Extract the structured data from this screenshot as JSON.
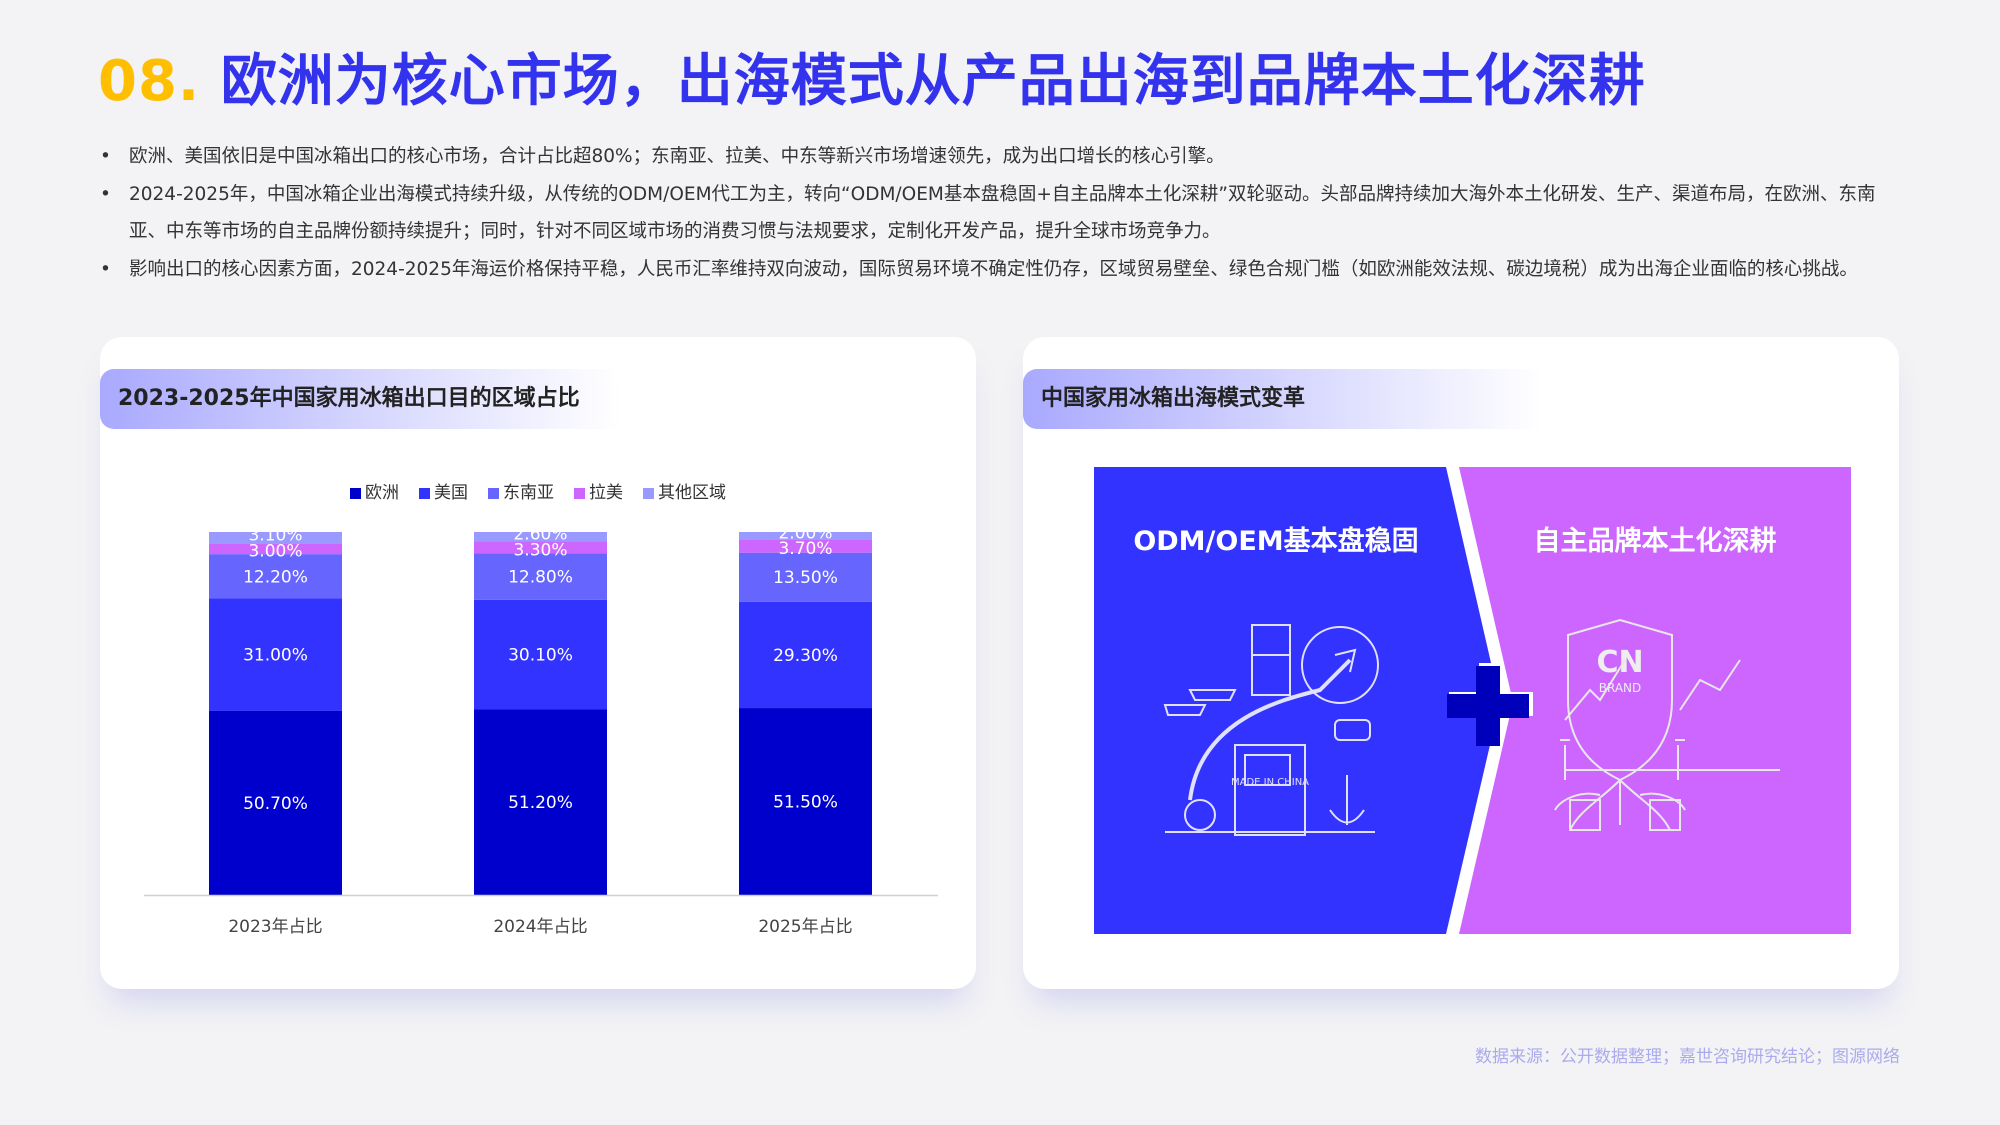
{
  "title": {
    "number": "08.",
    "text": "欧洲为核心市场，出海模式从产品出海到品牌本土化深耕"
  },
  "bullets": [
    "欧洲、美国依旧是中国冰箱出口的核心市场，合计占比超80%；东南亚、拉美、中东等新兴市场增速领先，成为出口增长的核心引擎。",
    "2024-2025年，中国冰箱企业出海模式持续升级，从传统的ODM/OEM代工为主，转向“ODM/OEM基本盘稳固+自主品牌本土化深耕”双轮驱动。头部品牌持续加大海外本土化研发、生产、渠道布局，在欧洲、东南亚、中东等市场的自主品牌份额持续提升；同时，针对不同区域市场的消费习惯与法规要求，定制化开发产品，提升全球市场竞争力。",
    "影响出口的核心因素方面，2024-2025年海运价格保持平稳，人民币汇率维持双向波动，国际贸易环境不确定性仍存，区域贸易壁垒、绿色合规门槛（如欧洲能效法规、碳边境税）成为出海企业面临的核心挑战。"
  ],
  "left_card": {
    "header": "2023-2025年中国家用冰箱出口目的区域占比"
  },
  "right_card": {
    "header": "中国家用冰箱出海模式变革",
    "left_panel_title": "ODM/OEM基本盘稳固",
    "right_panel_title": "自主品牌本土化深耕",
    "left_panel_color": "#3333ff",
    "right_panel_color": "#cc66ff",
    "plus_color": "#0000bb",
    "left_illustration": "made-in-china-export-illustration",
    "right_illustration": "cn-brand-local-roots-illustration",
    "illustration_text": {
      "left": "MADE IN CHINA",
      "right_top": "CN",
      "right_sub": "BRAND"
    }
  },
  "chart_data": {
    "type": "bar",
    "stacked": true,
    "categories": [
      "2023年占比",
      "2024年占比",
      "2025年占比"
    ],
    "series": [
      {
        "name": "欧洲",
        "color": "#0000cc",
        "values": [
          50.7,
          51.2,
          51.5
        ],
        "labels": [
          "50.70%",
          "51.20%",
          "51.50%"
        ]
      },
      {
        "name": "美国",
        "color": "#3333ff",
        "values": [
          31.0,
          30.1,
          29.3
        ],
        "labels": [
          "31.00%",
          "30.10%",
          "29.30%"
        ]
      },
      {
        "name": "东南亚",
        "color": "#6666ff",
        "values": [
          12.2,
          12.8,
          13.5
        ],
        "labels": [
          "12.20%",
          "12.80%",
          "13.50%"
        ]
      },
      {
        "name": "拉美",
        "color": "#cc66ff",
        "values": [
          3.0,
          3.3,
          3.7
        ],
        "labels": [
          "3.00%",
          "3.30%",
          "3.70%"
        ]
      },
      {
        "name": "其他区域",
        "color": "#9999ff",
        "values": [
          3.1,
          2.6,
          2.0
        ],
        "labels": [
          "3.10%",
          "2.60%",
          "2.00%"
        ]
      }
    ],
    "ylim": [
      0,
      100
    ],
    "legend": "top-center",
    "grid": false
  },
  "source": "数据来源：公开数据整理；嘉世咨询研究结论；图源网络"
}
